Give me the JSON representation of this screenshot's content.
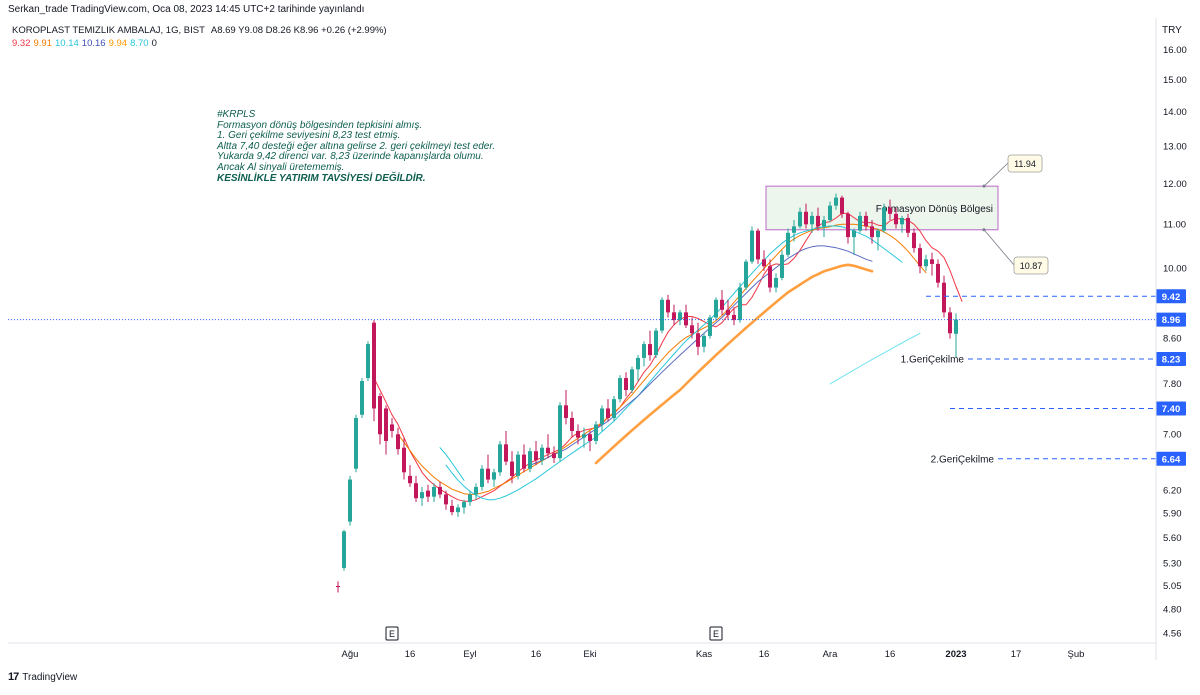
{
  "header": {
    "publish_line": "Serkan_trade TradingView.com, Oca 08, 2023 14:45 UTC+2 tarihinde yayınlandı",
    "symbol_name": "KOROPLAST TEMIZLIK AMBALAJ, 1G, BIST",
    "ohlc": "A8.69  Y9.08  D8.26  K8.96  +0.26 (+2.99%)",
    "currency": "TRY"
  },
  "ma_values": [
    {
      "label": "9.32",
      "color": "#f23645"
    },
    {
      "label": "9.91",
      "color": "#f57c00"
    },
    {
      "label": "10.14",
      "color": "#26c6da"
    },
    {
      "label": "10.16",
      "color": "#3f51b5"
    },
    {
      "label": "9.94",
      "color": "#ff9800"
    },
    {
      "label": "8.70",
      "color": "#26c6da"
    },
    {
      "label": "0",
      "color": "#131722"
    }
  ],
  "note": {
    "lines": [
      "#KRPLS",
      "Formasyon dönüş bölgesinden tepkisini almış.",
      "1. Geri çekilme seviyesini 8,23 test etmiş.",
      "Altta 7,40 desteği eğer altına gelirse 2. geri çekilmeyi test eder.",
      "Yukarda 9,42 direnci var. 8,23 üzerinde kapanışlarda olumu.",
      "Ancak Al sinyali üretememiş."
    ],
    "caps_line": "KESİNLİKLE YATIRIM TAVSİYESİ DEĞİLDİR."
  },
  "footer": {
    "brand": "TradingView",
    "logo": "17"
  },
  "chart_data": {
    "type": "candlestick",
    "y_scale": "log",
    "ylim": [
      4.4,
      17.0
    ],
    "y_ticks": [
      4.56,
      4.8,
      5.05,
      5.3,
      5.6,
      5.9,
      6.2,
      6.64,
      7.0,
      7.4,
      7.8,
      8.23,
      8.6,
      8.96,
      9.42,
      10.0,
      11.0,
      12.0,
      13.0,
      14.0,
      15.0,
      16.0
    ],
    "y_tick_labels": [
      "4.56",
      "4.80",
      "5.05",
      "5.30",
      "5.60",
      "5.90",
      "6.20",
      "",
      "7.00",
      "",
      "7.80",
      "",
      "8.60",
      "",
      "",
      "10.00",
      "11.00",
      "12.00",
      "13.00",
      "14.00",
      "15.00",
      "16.00"
    ],
    "x_labels": [
      {
        "index": 2,
        "label": "Ağu"
      },
      {
        "index": 12,
        "label": "16"
      },
      {
        "index": 22,
        "label": "Eyl"
      },
      {
        "index": 33,
        "label": "16"
      },
      {
        "index": 42,
        "label": "Eki"
      },
      {
        "index": 61,
        "label": "Kas"
      },
      {
        "index": 71,
        "label": "16"
      },
      {
        "index": 82,
        "label": "Ara"
      },
      {
        "index": 92,
        "label": "16"
      },
      {
        "index": 103,
        "label": "2023",
        "bold": true
      },
      {
        "index": 113,
        "label": "17"
      },
      {
        "index": 123,
        "label": "Şub"
      }
    ],
    "earnings_markers": [
      {
        "index": 9,
        "label": "E"
      },
      {
        "index": 63,
        "label": "E"
      }
    ],
    "candles": [
      [
        5.05,
        5.1,
        4.98,
        5.04
      ],
      [
        5.25,
        5.7,
        5.22,
        5.68
      ],
      [
        5.8,
        6.4,
        5.75,
        6.35
      ],
      [
        6.5,
        7.3,
        6.45,
        7.25
      ],
      [
        7.3,
        7.9,
        7.25,
        7.85
      ],
      [
        7.9,
        8.55,
        7.85,
        8.5
      ],
      [
        8.9,
        8.95,
        7.2,
        7.4
      ],
      [
        7.6,
        7.65,
        6.85,
        7.0
      ],
      [
        7.4,
        7.45,
        6.7,
        6.9
      ],
      [
        7.15,
        7.25,
        6.95,
        7.05
      ],
      [
        7.0,
        7.1,
        6.7,
        6.78
      ],
      [
        6.8,
        6.95,
        6.35,
        6.45
      ],
      [
        6.4,
        6.55,
        6.25,
        6.3
      ],
      [
        6.3,
        6.4,
        6.05,
        6.1
      ],
      [
        6.1,
        6.25,
        6.0,
        6.18
      ],
      [
        6.2,
        6.28,
        6.05,
        6.12
      ],
      [
        6.12,
        6.3,
        6.05,
        6.25
      ],
      [
        6.25,
        6.32,
        6.1,
        6.15
      ],
      [
        6.15,
        6.2,
        5.95,
        6.02
      ],
      [
        6.0,
        6.08,
        5.88,
        5.92
      ],
      [
        5.92,
        6.02,
        5.86,
        5.98
      ],
      [
        5.98,
        6.08,
        5.9,
        6.05
      ],
      [
        6.05,
        6.2,
        6.0,
        6.15
      ],
      [
        6.15,
        6.3,
        6.08,
        6.25
      ],
      [
        6.25,
        6.55,
        6.2,
        6.5
      ],
      [
        6.5,
        6.7,
        6.3,
        6.35
      ],
      [
        6.35,
        6.5,
        6.25,
        6.45
      ],
      [
        6.45,
        6.9,
        6.4,
        6.85
      ],
      [
        6.85,
        7.05,
        6.55,
        6.6
      ],
      [
        6.6,
        6.75,
        6.3,
        6.4
      ],
      [
        6.4,
        6.75,
        6.35,
        6.7
      ],
      [
        6.7,
        6.85,
        6.45,
        6.5
      ],
      [
        6.5,
        6.8,
        6.45,
        6.75
      ],
      [
        6.75,
        6.9,
        6.55,
        6.62
      ],
      [
        6.62,
        6.85,
        6.55,
        6.8
      ],
      [
        6.8,
        7.0,
        6.65,
        6.72
      ],
      [
        6.72,
        6.82,
        6.58,
        6.65
      ],
      [
        6.65,
        7.5,
        6.6,
        7.45
      ],
      [
        7.45,
        7.7,
        7.15,
        7.25
      ],
      [
        7.25,
        7.35,
        6.95,
        7.05
      ],
      [
        7.05,
        7.15,
        6.85,
        6.95
      ],
      [
        6.95,
        7.1,
        6.8,
        7.0
      ],
      [
        7.0,
        7.05,
        6.75,
        6.9
      ],
      [
        6.9,
        7.2,
        6.85,
        7.15
      ],
      [
        7.15,
        7.45,
        7.05,
        7.4
      ],
      [
        7.4,
        7.55,
        7.2,
        7.25
      ],
      [
        7.25,
        7.6,
        7.2,
        7.55
      ],
      [
        7.55,
        7.95,
        7.5,
        7.9
      ],
      [
        7.9,
        8.0,
        7.6,
        7.7
      ],
      [
        7.7,
        8.1,
        7.65,
        8.05
      ],
      [
        8.05,
        8.3,
        7.85,
        8.25
      ],
      [
        8.25,
        8.55,
        8.1,
        8.5
      ],
      [
        8.5,
        8.75,
        8.2,
        8.3
      ],
      [
        8.3,
        8.8,
        8.25,
        8.75
      ],
      [
        8.75,
        9.4,
        8.7,
        9.35
      ],
      [
        9.35,
        9.45,
        9.0,
        9.1
      ],
      [
        9.1,
        9.25,
        8.85,
        8.95
      ],
      [
        8.95,
        9.15,
        8.85,
        9.1
      ],
      [
        9.1,
        9.25,
        8.8,
        8.85
      ],
      [
        8.85,
        9.0,
        8.6,
        8.7
      ],
      [
        8.7,
        8.9,
        8.3,
        8.45
      ],
      [
        8.45,
        8.7,
        8.35,
        8.65
      ],
      [
        8.65,
        9.05,
        8.6,
        9.0
      ],
      [
        9.0,
        9.4,
        8.95,
        9.35
      ],
      [
        9.35,
        9.55,
        9.05,
        9.15
      ],
      [
        9.15,
        9.35,
        8.95,
        9.05
      ],
      [
        9.05,
        9.2,
        8.85,
        8.95
      ],
      [
        8.95,
        9.7,
        8.9,
        9.6
      ],
      [
        9.6,
        10.2,
        9.55,
        10.15
      ],
      [
        10.15,
        10.95,
        10.1,
        10.85
      ],
      [
        10.85,
        10.9,
        10.1,
        10.2
      ],
      [
        10.2,
        10.4,
        9.95,
        10.05
      ],
      [
        10.05,
        10.2,
        9.5,
        9.6
      ],
      [
        9.6,
        9.9,
        9.5,
        9.8
      ],
      [
        9.8,
        10.4,
        9.75,
        10.3
      ],
      [
        10.3,
        10.9,
        10.25,
        10.8
      ],
      [
        10.8,
        11.1,
        10.6,
        10.95
      ],
      [
        10.95,
        11.4,
        10.9,
        11.3
      ],
      [
        11.3,
        11.5,
        10.9,
        11.0
      ],
      [
        11.0,
        11.3,
        10.8,
        11.2
      ],
      [
        11.2,
        11.4,
        10.85,
        10.95
      ],
      [
        10.95,
        11.2,
        10.7,
        11.1
      ],
      [
        11.1,
        11.55,
        11.05,
        11.45
      ],
      [
        11.45,
        11.75,
        11.35,
        11.65
      ],
      [
        11.65,
        11.7,
        11.15,
        11.25
      ],
      [
        11.25,
        11.3,
        10.55,
        10.7
      ],
      [
        10.7,
        10.9,
        10.3,
        10.85
      ],
      [
        10.85,
        11.3,
        10.8,
        11.2
      ],
      [
        11.2,
        11.3,
        10.85,
        10.95
      ],
      [
        10.95,
        11.1,
        10.55,
        10.7
      ],
      [
        10.7,
        10.9,
        10.4,
        10.85
      ],
      [
        10.85,
        11.5,
        10.8,
        11.4
      ],
      [
        11.4,
        11.6,
        11.1,
        11.25
      ],
      [
        11.25,
        11.4,
        10.9,
        11.0
      ],
      [
        11.0,
        11.2,
        10.8,
        11.15
      ],
      [
        11.15,
        11.25,
        10.7,
        10.8
      ],
      [
        10.8,
        10.9,
        10.35,
        10.45
      ],
      [
        10.45,
        10.55,
        9.9,
        10.05
      ],
      [
        10.05,
        10.3,
        9.95,
        10.2
      ],
      [
        10.2,
        10.35,
        9.85,
        10.1
      ],
      [
        10.1,
        10.2,
        9.6,
        9.7
      ],
      [
        9.7,
        9.85,
        9.0,
        9.1
      ],
      [
        9.1,
        9.2,
        8.6,
        8.7
      ],
      [
        8.69,
        9.08,
        8.26,
        8.96
      ]
    ],
    "series": [
      {
        "name": "",
        "color": "#f23645",
        "width": 1,
        "start": 6,
        "values": [
          7.9,
          7.7,
          7.5,
          7.3,
          7.15,
          6.95,
          6.75,
          6.6,
          6.45,
          6.35,
          6.28,
          6.22,
          6.17,
          6.12,
          6.08,
          6.06,
          6.06,
          6.08,
          6.12,
          6.16,
          6.2,
          6.26,
          6.32,
          6.38,
          6.46,
          6.52,
          6.58,
          6.62,
          6.66,
          6.7,
          6.74,
          6.78,
          6.86,
          6.96,
          7.02,
          7.06,
          7.08,
          7.1,
          7.16,
          7.26,
          7.32,
          7.42,
          7.56,
          7.68,
          7.84,
          8.0,
          8.12,
          8.3,
          8.52,
          8.72,
          8.86,
          8.96,
          9.02,
          9.02,
          8.98,
          8.92,
          8.86,
          8.82,
          8.9,
          9.05,
          9.18,
          9.25,
          9.25,
          9.4,
          9.62,
          9.88,
          10.05,
          10.1,
          10.08,
          10.1,
          10.22,
          10.4,
          10.62,
          10.84,
          10.96,
          11.04,
          11.06,
          11.15,
          11.26,
          11.26,
          11.16,
          11.06,
          11.04,
          11.04,
          10.98,
          10.96,
          11.08,
          11.14,
          11.12,
          11.1,
          11.0,
          10.84,
          10.62,
          10.46,
          10.38,
          10.24,
          9.96,
          9.62,
          9.32
        ]
      },
      {
        "name": "",
        "color": "#f57c00",
        "width": 1,
        "start": 10,
        "values": [
          7.0,
          6.88,
          6.76,
          6.64,
          6.54,
          6.46,
          6.38,
          6.32,
          6.27,
          6.22,
          6.19,
          6.16,
          6.15,
          6.15,
          6.17,
          6.19,
          6.23,
          6.27,
          6.31,
          6.36,
          6.41,
          6.46,
          6.51,
          6.56,
          6.61,
          6.66,
          6.71,
          6.76,
          6.82,
          6.88,
          6.94,
          7.0,
          7.06,
          7.12,
          7.18,
          7.26,
          7.34,
          7.42,
          7.52,
          7.62,
          7.74,
          7.86,
          7.98,
          8.1,
          8.22,
          8.34,
          8.44,
          8.54,
          8.62,
          8.68,
          8.74,
          8.8,
          8.86,
          8.94,
          9.04,
          9.16,
          9.3,
          9.44,
          9.58,
          9.72,
          9.86,
          10.0,
          10.14,
          10.28,
          10.42,
          10.56,
          10.66,
          10.74,
          10.8,
          10.86,
          10.9,
          10.92,
          10.94,
          10.98,
          11.0,
          11.0,
          11.0,
          10.98,
          10.96,
          10.92,
          10.88,
          10.82,
          10.74,
          10.64,
          10.52,
          10.38,
          10.22,
          10.06,
          9.91
        ]
      },
      {
        "name": "",
        "color": "#26c6da",
        "width": 1,
        "start": 18,
        "values": [
          6.55,
          6.44,
          6.34,
          6.26,
          6.19,
          6.14,
          6.1,
          6.08,
          6.08,
          6.1,
          6.13,
          6.17,
          6.21,
          6.26,
          6.31,
          6.36,
          6.42,
          6.48,
          6.54,
          6.6,
          6.66,
          6.72,
          6.78,
          6.84,
          6.9,
          6.96,
          7.04,
          7.12,
          7.2,
          7.3,
          7.4,
          7.5,
          7.6,
          7.72,
          7.84,
          7.96,
          8.08,
          8.2,
          8.32,
          8.44,
          8.56,
          8.66,
          8.76,
          8.86,
          8.96,
          9.08,
          9.2,
          9.34,
          9.48,
          9.62,
          9.76,
          9.9,
          10.04,
          10.18,
          10.32,
          10.44,
          10.56,
          10.66,
          10.74,
          10.8,
          10.84,
          10.88,
          10.92,
          10.94,
          10.96,
          10.96,
          10.94,
          10.9,
          10.84,
          10.78,
          10.72,
          10.64,
          10.54,
          10.44,
          10.34,
          10.24,
          10.14
        ]
      },
      {
        "name": "",
        "color": "#5c6bc0",
        "width": 1,
        "start": 32,
        "values": [
          6.55,
          6.58,
          6.62,
          6.66,
          6.7,
          6.74,
          6.78,
          6.84,
          6.9,
          6.96,
          7.02,
          7.08,
          7.14,
          7.2,
          7.28,
          7.36,
          7.44,
          7.52,
          7.6,
          7.7,
          7.8,
          7.9,
          8.0,
          8.1,
          8.2,
          8.3,
          8.4,
          8.5,
          8.6,
          8.7,
          8.8,
          8.9,
          9.0,
          9.12,
          9.24,
          9.36,
          9.48,
          9.6,
          9.72,
          9.82,
          9.92,
          10.02,
          10.12,
          10.22,
          10.3,
          10.38,
          10.44,
          10.48,
          10.5,
          10.5,
          10.48,
          10.46,
          10.42,
          10.38,
          10.32,
          10.26,
          10.2,
          10.16
        ]
      },
      {
        "name": "",
        "color": "#ff9f40",
        "width": 2.6,
        "start": 43,
        "values": [
          6.58,
          6.66,
          6.74,
          6.82,
          6.9,
          6.98,
          7.06,
          7.14,
          7.22,
          7.3,
          7.38,
          7.46,
          7.54,
          7.62,
          7.7,
          7.8,
          7.9,
          8.0,
          8.1,
          8.2,
          8.3,
          8.4,
          8.5,
          8.6,
          8.7,
          8.8,
          8.9,
          9.0,
          9.1,
          9.2,
          9.3,
          9.4,
          9.5,
          9.58,
          9.66,
          9.74,
          9.82,
          9.88,
          9.94,
          9.98,
          10.02,
          10.06,
          10.08,
          10.06,
          10.02,
          9.98,
          9.94
        ]
      },
      {
        "name": "",
        "color": "#6fe2f0",
        "width": 1,
        "start": 82,
        "values": [
          7.8,
          7.86,
          7.92,
          7.98,
          8.04,
          8.1,
          8.16,
          8.22,
          8.28,
          8.34,
          8.4,
          8.46,
          8.52,
          8.58,
          8.64,
          8.7
        ]
      },
      {
        "name": "",
        "color": "#26c6da",
        "width": 1,
        "start": 17,
        "values": [
          6.8,
          6.7,
          6.58,
          6.46,
          6.34
        ]
      }
    ],
    "pattern_zone": {
      "label": "Formasyon Dönüş Bölgesi",
      "from_index": 72,
      "to_index": 109,
      "low": 10.87,
      "high": 11.94
    },
    "zone_callouts": [
      {
        "label": "11.94",
        "value": 11.94
      },
      {
        "label": "10.87",
        "value": 10.87
      }
    ],
    "levels": [
      {
        "value": 9.42,
        "label": "9.42",
        "text": "",
        "color": "#2962ff",
        "from_index": 98
      },
      {
        "value": 8.96,
        "label": "8.96",
        "text": "",
        "color": "#2962ff",
        "dotted": true,
        "from_index": -99
      },
      {
        "value": 8.23,
        "label": "8.23",
        "text": "1.GeriÇekilme",
        "color": "#2962ff",
        "from_index": 105
      },
      {
        "value": 7.4,
        "label": "7.40",
        "text": "",
        "color": "#2962ff",
        "from_index": 102
      },
      {
        "value": 6.64,
        "label": "6.64",
        "text": "2.GeriÇekilme",
        "color": "#2962ff",
        "from_index": 110
      }
    ],
    "grid": false,
    "up_color": "#26a69a",
    "down_color": "#c2185b"
  }
}
